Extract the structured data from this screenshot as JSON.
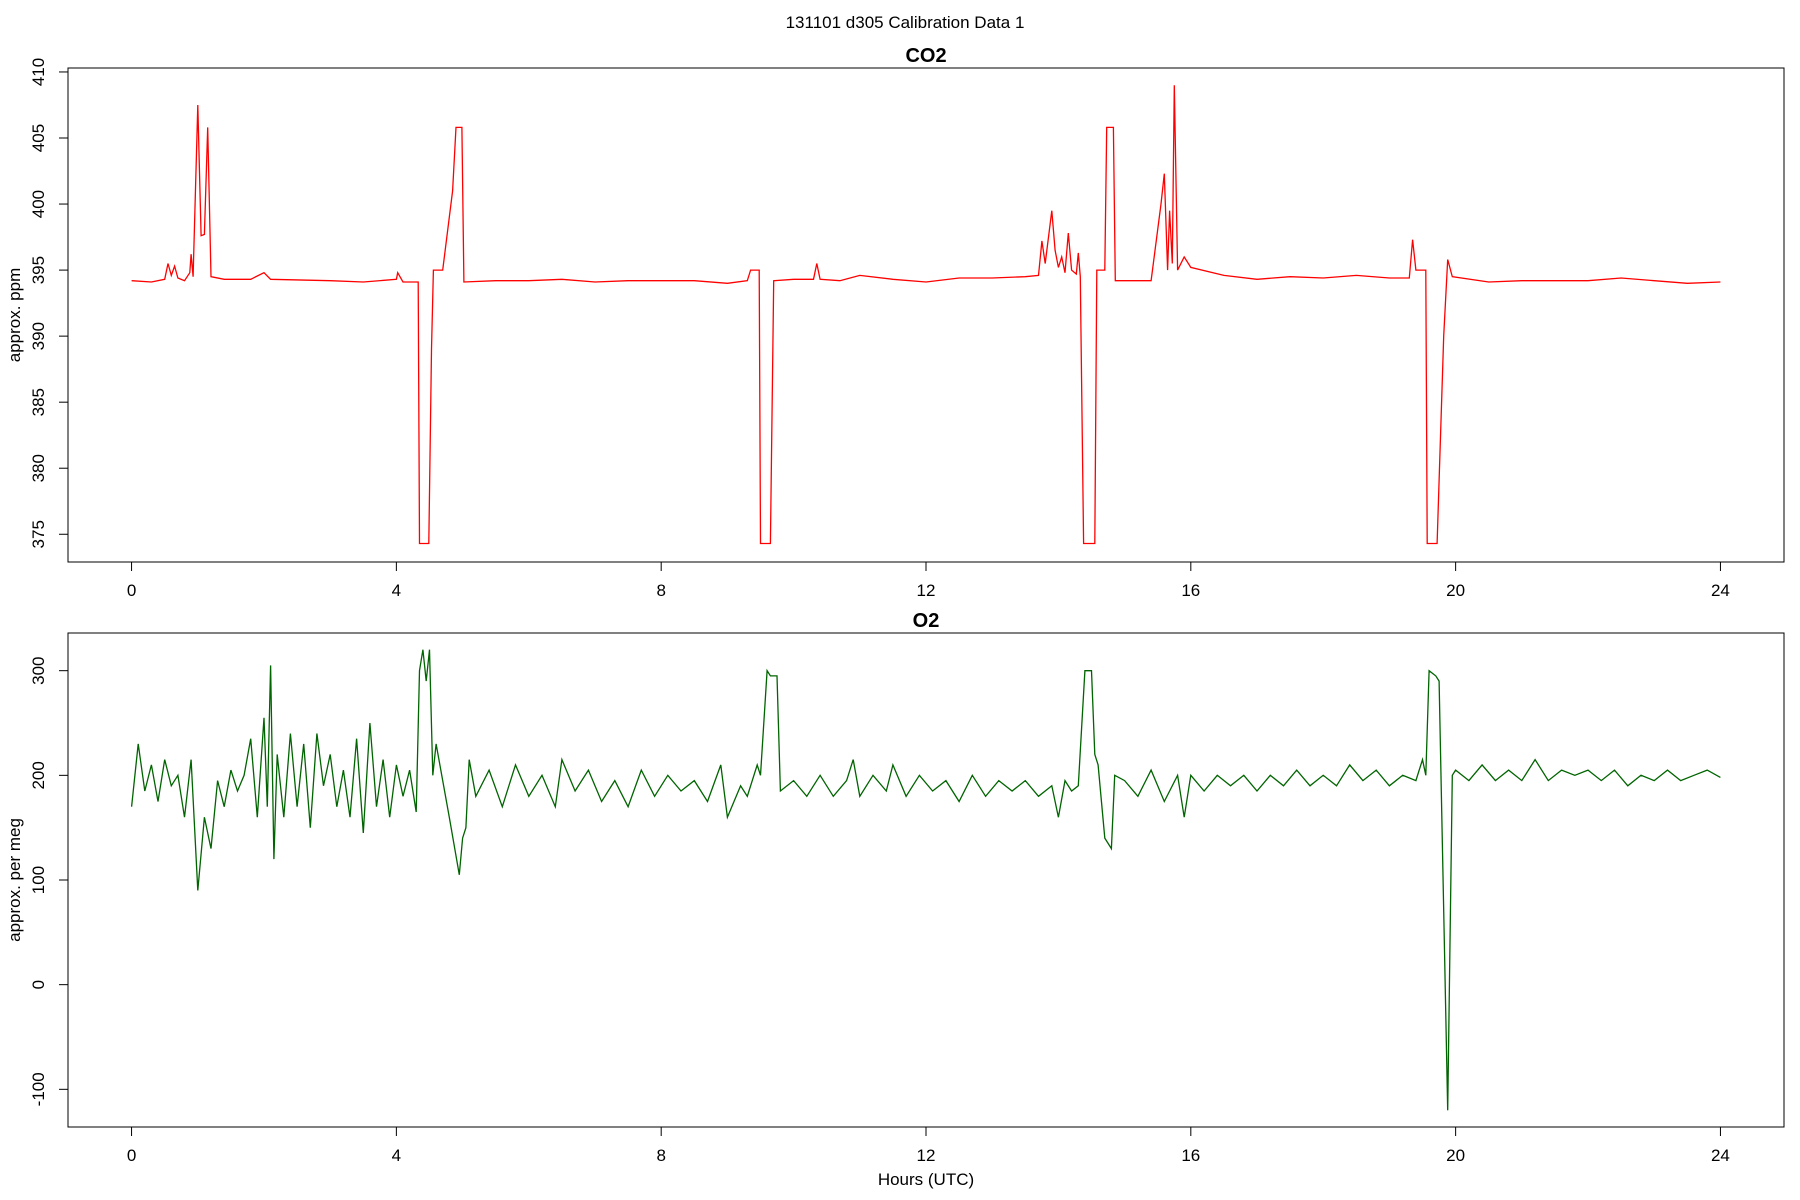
{
  "title": "131101   d305   Calibration Data 1",
  "chart_data": [
    {
      "type": "line",
      "title": "CO2",
      "ylabel": "approx. ppm",
      "color": "#ff0000",
      "x": [
        0,
        0.3,
        0.5,
        0.55,
        0.6,
        0.65,
        0.7,
        0.8,
        0.88,
        0.9,
        0.93,
        1.0,
        1.05,
        1.1,
        1.15,
        1.2,
        1.4,
        1.8,
        2.0,
        2.1,
        3.0,
        3.5,
        4.0,
        4.02,
        4.1,
        4.33,
        4.35,
        4.49,
        4.53,
        4.56,
        4.7,
        4.85,
        4.9,
        4.99,
        5.02,
        5.5,
        6.0,
        6.5,
        7.0,
        7.5,
        8.0,
        8.5,
        9.0,
        9.3,
        9.35,
        9.48,
        9.5,
        9.65,
        9.7,
        10.0,
        10.3,
        10.35,
        10.4,
        10.7,
        11.0,
        11.5,
        12.0,
        12.5,
        13.0,
        13.5,
        13.7,
        13.75,
        13.8,
        13.9,
        13.95,
        14.0,
        14.05,
        14.1,
        14.15,
        14.2,
        14.27,
        14.3,
        14.33,
        14.38,
        14.55,
        14.58,
        14.7,
        14.73,
        14.83,
        14.86,
        15.4,
        15.55,
        15.6,
        15.65,
        15.68,
        15.72,
        15.75,
        15.8,
        15.9,
        16.0,
        16.5,
        17.0,
        17.5,
        18.0,
        18.5,
        19.0,
        19.3,
        19.35,
        19.4,
        19.55,
        19.57,
        19.72,
        19.82,
        19.88,
        19.95,
        20.5,
        21.0,
        22.0,
        22.5,
        23.0,
        23.5,
        24.0
      ],
      "values": [
        394.2,
        394.1,
        394.3,
        395.5,
        394.6,
        395.3,
        394.4,
        394.2,
        394.8,
        396.2,
        394.5,
        407.5,
        397.6,
        397.7,
        405.8,
        394.5,
        394.3,
        394.3,
        394.8,
        394.3,
        394.2,
        394.1,
        394.3,
        394.8,
        394.1,
        394.1,
        374.3,
        374.3,
        389,
        395,
        395,
        401,
        405.8,
        405.8,
        394.1,
        394.2,
        394.2,
        394.3,
        394.1,
        394.2,
        394.2,
        394.2,
        394.0,
        394.2,
        395.0,
        395.0,
        374.3,
        374.3,
        394.2,
        394.3,
        394.3,
        395.5,
        394.3,
        394.2,
        394.6,
        394.3,
        394.1,
        394.4,
        394.4,
        394.5,
        394.6,
        397.2,
        395.5,
        399.5,
        396.5,
        395.2,
        396,
        394.8,
        397.8,
        395,
        394.7,
        396.3,
        394.5,
        374.3,
        374.3,
        395,
        395,
        405.8,
        405.8,
        394.2,
        394.2,
        400,
        402.3,
        395,
        399.5,
        395.5,
        409,
        395,
        396,
        395.2,
        394.6,
        394.3,
        394.5,
        394.4,
        394.6,
        394.4,
        394.4,
        397.3,
        395,
        395,
        374.3,
        374.3,
        390,
        395.8,
        394.5,
        394.1,
        394.2,
        394.2,
        394.4,
        394.2,
        394.0,
        394.1
      ],
      "xlim": [
        -0.96,
        24.96
      ],
      "xticks": [
        0,
        4,
        8,
        12,
        16,
        20,
        24
      ],
      "ylim": [
        372.9,
        410.3
      ],
      "yticks": [
        375,
        380,
        385,
        390,
        395,
        400,
        405,
        410
      ]
    },
    {
      "type": "line",
      "title": "O2",
      "ylabel": "approx. per meg",
      "xlabel": "Hours (UTC)",
      "color": "#006400",
      "x": [
        0,
        0.1,
        0.2,
        0.3,
        0.4,
        0.5,
        0.6,
        0.7,
        0.8,
        0.9,
        1.0,
        1.1,
        1.2,
        1.3,
        1.4,
        1.5,
        1.6,
        1.7,
        1.8,
        1.9,
        2.0,
        2.05,
        2.1,
        2.15,
        2.2,
        2.3,
        2.4,
        2.5,
        2.6,
        2.7,
        2.8,
        2.9,
        3.0,
        3.1,
        3.2,
        3.3,
        3.4,
        3.5,
        3.6,
        3.7,
        3.8,
        3.9,
        4.0,
        4.1,
        4.2,
        4.3,
        4.35,
        4.4,
        4.45,
        4.5,
        4.55,
        4.6,
        4.8,
        4.95,
        5.0,
        5.05,
        5.1,
        5.2,
        5.4,
        5.6,
        5.8,
        6.0,
        6.2,
        6.4,
        6.5,
        6.7,
        6.9,
        7.1,
        7.3,
        7.5,
        7.7,
        7.9,
        8.1,
        8.3,
        8.5,
        8.7,
        8.9,
        9.0,
        9.2,
        9.3,
        9.45,
        9.5,
        9.6,
        9.65,
        9.75,
        9.8,
        10.0,
        10.2,
        10.4,
        10.6,
        10.8,
        10.9,
        11.0,
        11.2,
        11.4,
        11.5,
        11.7,
        11.9,
        12.1,
        12.3,
        12.5,
        12.7,
        12.9,
        13.1,
        13.3,
        13.5,
        13.7,
        13.9,
        14.0,
        14.1,
        14.2,
        14.3,
        14.4,
        14.5,
        14.55,
        14.6,
        14.7,
        14.8,
        14.85,
        15.0,
        15.2,
        15.4,
        15.6,
        15.8,
        15.9,
        16.0,
        16.2,
        16.4,
        16.6,
        16.8,
        17.0,
        17.2,
        17.4,
        17.6,
        17.8,
        18.0,
        18.2,
        18.4,
        18.6,
        18.8,
        19.0,
        19.2,
        19.4,
        19.5,
        19.55,
        19.6,
        19.7,
        19.75,
        19.88,
        19.95,
        20.0,
        20.2,
        20.4,
        20.6,
        20.8,
        21.0,
        21.2,
        21.4,
        21.6,
        21.8,
        22.0,
        22.2,
        22.4,
        22.6,
        22.8,
        23.0,
        23.2,
        23.4,
        23.6,
        23.8,
        24.0
      ],
      "values": [
        170,
        230,
        185,
        210,
        175,
        215,
        190,
        200,
        160,
        215,
        90,
        160,
        130,
        195,
        170,
        205,
        185,
        200,
        235,
        160,
        255,
        170,
        305,
        120,
        220,
        160,
        240,
        170,
        230,
        150,
        240,
        190,
        220,
        170,
        205,
        160,
        235,
        145,
        250,
        170,
        215,
        160,
        210,
        180,
        205,
        165,
        300,
        320,
        290,
        320,
        200,
        230,
        160,
        105,
        140,
        150,
        215,
        180,
        205,
        170,
        210,
        180,
        200,
        170,
        215,
        185,
        205,
        175,
        195,
        170,
        205,
        180,
        200,
        185,
        195,
        175,
        210,
        160,
        190,
        180,
        210,
        200,
        300,
        295,
        295,
        185,
        195,
        180,
        200,
        180,
        195,
        215,
        180,
        200,
        185,
        210,
        180,
        200,
        185,
        195,
        175,
        200,
        180,
        195,
        185,
        195,
        180,
        190,
        160,
        195,
        185,
        190,
        300,
        300,
        220,
        210,
        140,
        130,
        200,
        195,
        180,
        205,
        175,
        200,
        160,
        200,
        185,
        200,
        190,
        200,
        185,
        200,
        190,
        205,
        190,
        200,
        190,
        210,
        195,
        205,
        190,
        200,
        195,
        215,
        200,
        300,
        295,
        290,
        -120,
        200,
        205,
        195,
        210,
        195,
        205,
        195,
        215,
        195,
        205,
        200,
        205,
        195,
        205,
        190,
        200,
        195,
        205,
        195,
        200,
        205,
        198
      ],
      "xlim": [
        -0.96,
        24.96
      ],
      "xticks": [
        0,
        4,
        8,
        12,
        16,
        20,
        24
      ],
      "ylim": [
        -136,
        336
      ],
      "yticks": [
        -100,
        0,
        100,
        200,
        300
      ]
    }
  ]
}
